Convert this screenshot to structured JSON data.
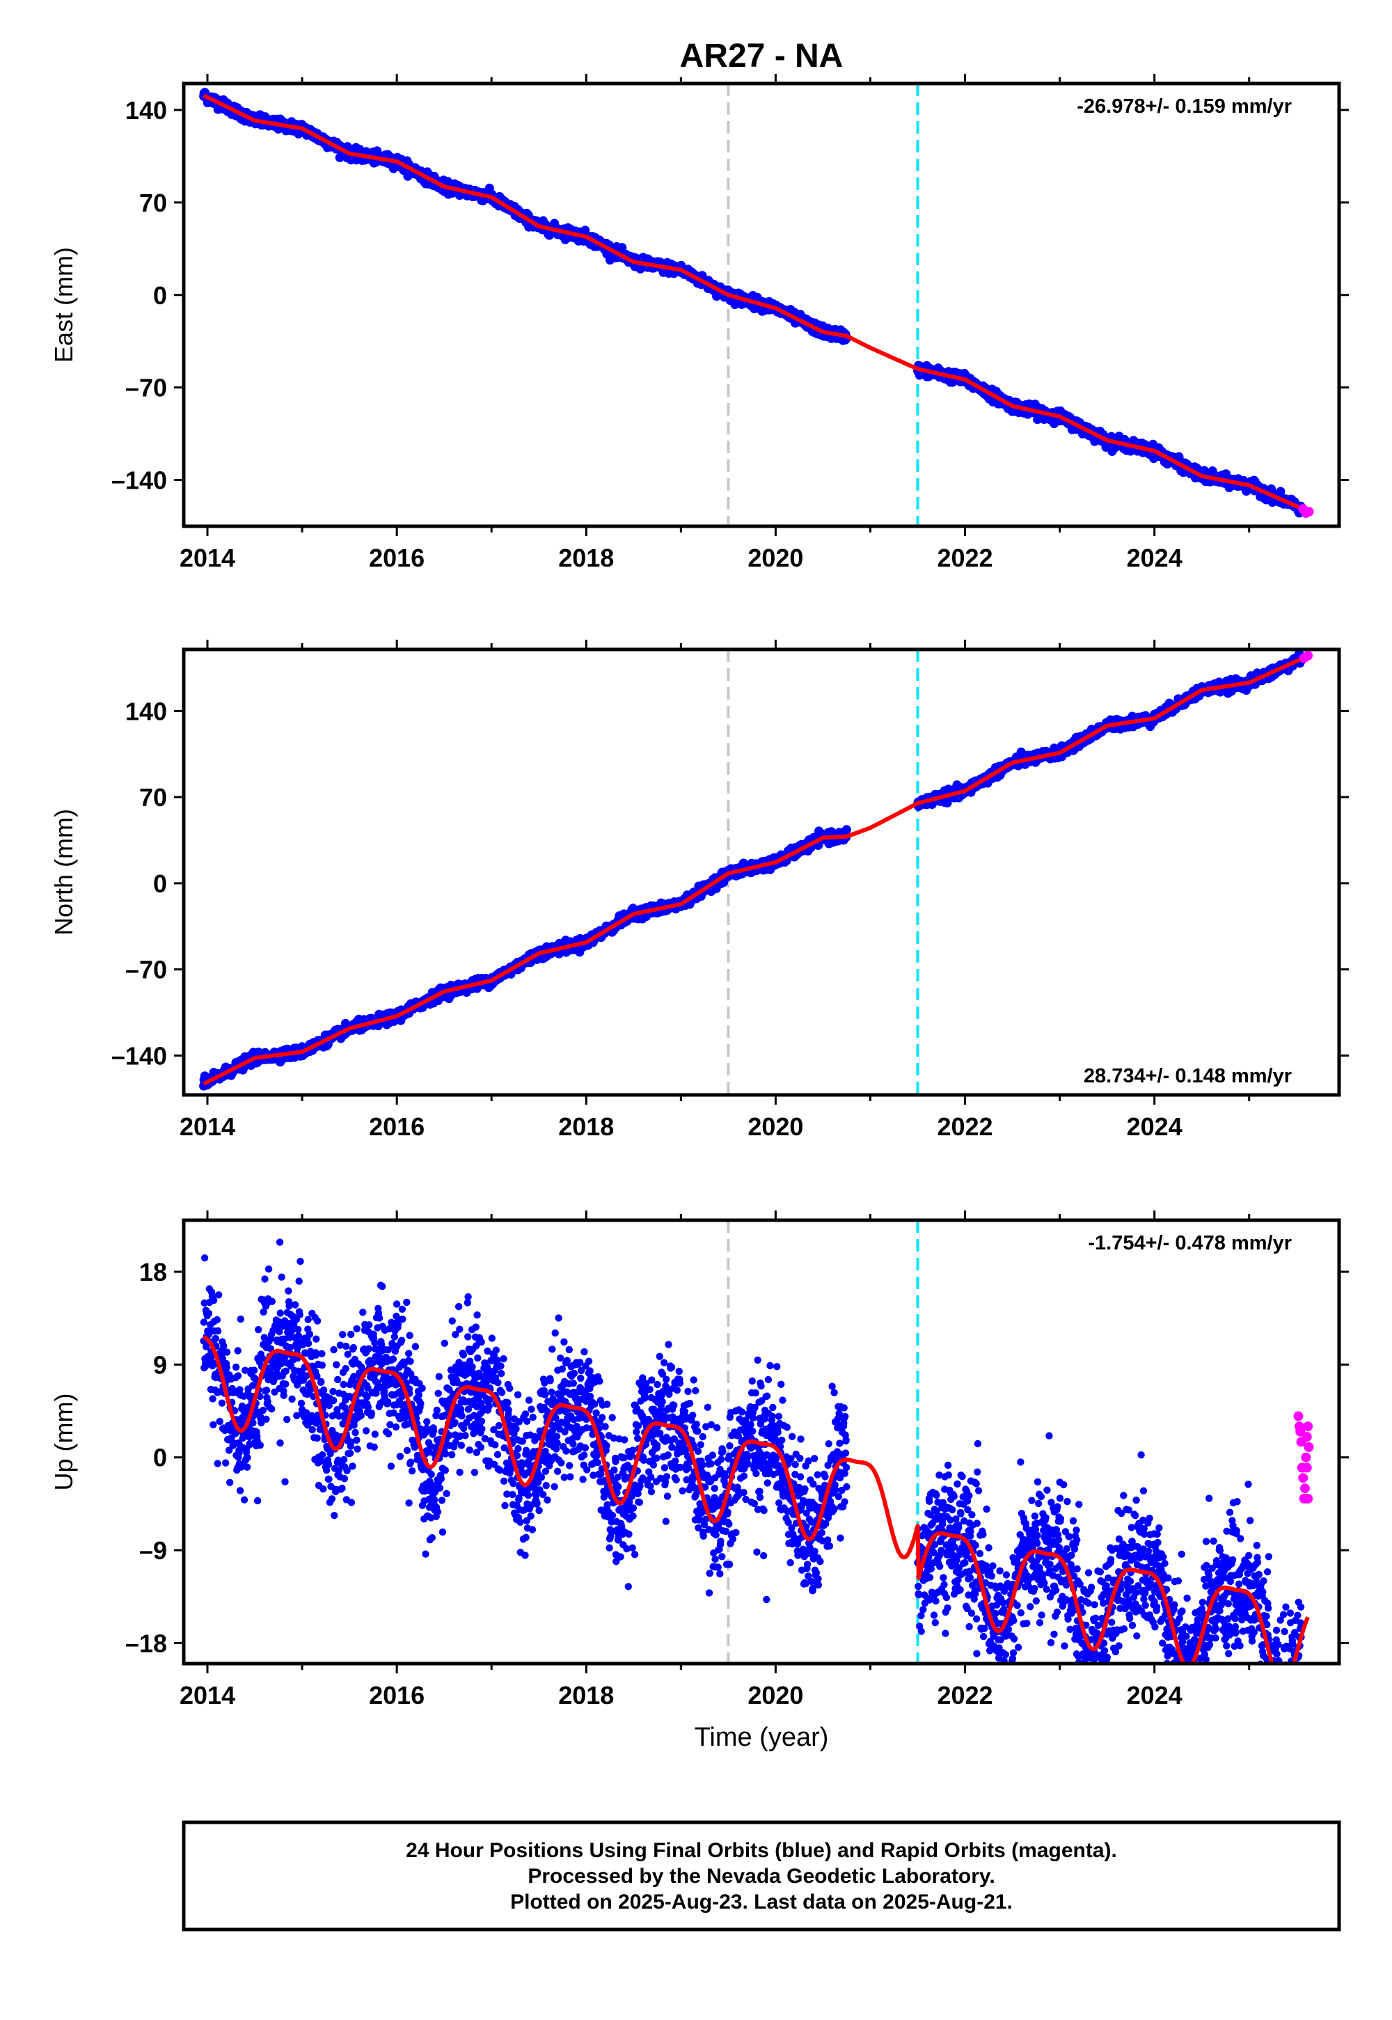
{
  "title": "AR27 - NA",
  "footer": {
    "line1": "24 Hour Positions Using Final Orbits (blue) and Rapid Orbits (magenta).",
    "line2": "Processed by the Nevada Geodetic Laboratory.",
    "line3": "Plotted on 2025-Aug-23. Last data on 2025-Aug-21."
  },
  "colors": {
    "final": "#0000ff",
    "rapid": "#ff00ff",
    "model": "#ff0000",
    "dash_gray": "#c8c8c8",
    "dash_cyan": "#00e5ff"
  },
  "events": [
    2019.5,
    2021.5
  ],
  "chart_data": [
    {
      "type": "scatter",
      "ylabel": "East (mm)",
      "xlabel": "",
      "xlim": [
        2013.75,
        2025.95
      ],
      "ylim": [
        -175,
        160
      ],
      "yticks": [
        140,
        70,
        0,
        -70,
        -140
      ],
      "xticks": [
        2014,
        2016,
        2018,
        2020,
        2022,
        2024
      ],
      "rate": "-26.978+/- 0.159 mm/yr",
      "rate_position": "top-right",
      "gap": [
        2020.75,
        2021.5
      ],
      "data_end": 2025.55,
      "series": [
        {
          "trend_knots": [
            [
              2013.96,
              151
            ],
            [
              2014.5,
              132
            ],
            [
              2015,
              126
            ],
            [
              2015.5,
              107
            ],
            [
              2016,
              101
            ],
            [
              2016.5,
              82
            ],
            [
              2017,
              74
            ],
            [
              2017.5,
              52
            ],
            [
              2018,
              44
            ],
            [
              2018.5,
              25
            ],
            [
              2019,
              19
            ],
            [
              2019.5,
              0
            ],
            [
              2020,
              -10
            ],
            [
              2020.5,
              -28
            ],
            [
              2020.75,
              -31
            ],
            [
              2021,
              -40
            ],
            [
              2021.5,
              -56
            ],
            [
              2022,
              -64
            ],
            [
              2022.5,
              -84
            ],
            [
              2023,
              -92
            ],
            [
              2023.5,
              -110
            ],
            [
              2024,
              -118
            ],
            [
              2024.5,
              -137
            ],
            [
              2025,
              -144
            ],
            [
              2025.6,
              -163
            ]
          ],
          "noise_sd": 2
        }
      ],
      "rapid_points": [
        [
          2025.57,
          -162
        ],
        [
          2025.6,
          -165
        ],
        [
          2025.63,
          -164
        ]
      ]
    },
    {
      "type": "scatter",
      "ylabel": "North (mm)",
      "xlabel": "",
      "xlim": [
        2013.75,
        2025.95
      ],
      "ylim": [
        -172,
        190
      ],
      "yticks": [
        140,
        70,
        0,
        -70,
        -140
      ],
      "xticks": [
        2014,
        2016,
        2018,
        2020,
        2022,
        2024
      ],
      "rate": "28.734+/- 0.148 mm/yr",
      "rate_position": "bottom-right",
      "gap": [
        2020.75,
        2021.5
      ],
      "data_end": 2025.55,
      "series": [
        {
          "trend_knots": [
            [
              2013.96,
              -163
            ],
            [
              2014.5,
              -142
            ],
            [
              2015,
              -137
            ],
            [
              2015.5,
              -118
            ],
            [
              2016,
              -108
            ],
            [
              2016.5,
              -88
            ],
            [
              2017,
              -79
            ],
            [
              2017.5,
              -57
            ],
            [
              2018,
              -48
            ],
            [
              2018.5,
              -25
            ],
            [
              2019,
              -17
            ],
            [
              2019.5,
              8
            ],
            [
              2020,
              17
            ],
            [
              2020.5,
              37
            ],
            [
              2020.75,
              38
            ],
            [
              2021,
              45
            ],
            [
              2021.5,
              65
            ],
            [
              2022,
              75
            ],
            [
              2022.5,
              98
            ],
            [
              2023,
              106
            ],
            [
              2023.5,
              128
            ],
            [
              2024,
              134
            ],
            [
              2024.5,
              157
            ],
            [
              2025,
              163
            ],
            [
              2025.6,
              184
            ]
          ],
          "noise_sd": 2
        }
      ],
      "rapid_points": [
        [
          2025.58,
          183
        ],
        [
          2025.62,
          185
        ]
      ]
    },
    {
      "type": "scatter",
      "ylabel": "Up (mm)",
      "xlabel": "Time (year)",
      "xlim": [
        2013.75,
        2025.95
      ],
      "ylim": [
        -20,
        23
      ],
      "yticks": [
        18,
        9,
        0,
        -9,
        -18
      ],
      "xticks": [
        2014,
        2016,
        2018,
        2020,
        2022,
        2024
      ],
      "rate": "-1.754+/- 0.478 mm/yr",
      "rate_position": "top-right",
      "gap": [
        2020.75,
        2021.5
      ],
      "data_end": 2025.55,
      "series": [
        {
          "model": {
            "offset": 8.6,
            "offset_after_2021_5": 3.2,
            "slope": -1.754,
            "t0": 2014.0,
            "annual_amplitude": 4.2,
            "annual_peak": 2014.85,
            "semiannual_amplitude": 1.2,
            "semiannual_peak": 2014.6
          },
          "noise_sd": 3.2
        }
      ],
      "rapid_points": [
        [
          2025.52,
          4
        ],
        [
          2025.53,
          3
        ],
        [
          2025.54,
          2.5
        ],
        [
          2025.55,
          1.5
        ],
        [
          2025.56,
          -1
        ],
        [
          2025.57,
          -2
        ],
        [
          2025.58,
          -4
        ],
        [
          2025.59,
          -3
        ],
        [
          2025.6,
          0
        ],
        [
          2025.61,
          2
        ],
        [
          2025.62,
          3
        ],
        [
          2025.63,
          1
        ],
        [
          2025.62,
          -4
        ],
        [
          2025.61,
          -1
        ]
      ]
    }
  ]
}
